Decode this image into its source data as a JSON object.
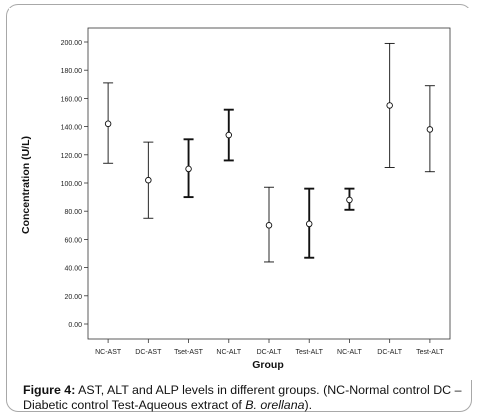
{
  "chart_data": {
    "type": "errorbar",
    "ylabel": "Concentration (U/L)",
    "xlabel": "Group",
    "ylim": [
      0,
      200
    ],
    "yticks": [
      "0.00",
      "20.00",
      "40.00",
      "60.00",
      "80.00",
      "100.00",
      "120.00",
      "140.00",
      "160.00",
      "180.00",
      "200.00"
    ],
    "categories": [
      "NC-AST",
      "DC-AST",
      "Tset-AST",
      "NC-ALT",
      "DC-ALT",
      "Test-ALT",
      "NC-ALT",
      "DC-ALT",
      "Test-ALT"
    ],
    "means": [
      142,
      102,
      110,
      134,
      70,
      71,
      88,
      155,
      138
    ],
    "lower": [
      114,
      75,
      90,
      116,
      44,
      47,
      81,
      111,
      108
    ],
    "upper": [
      171,
      129,
      131,
      152,
      97,
      96,
      96,
      199,
      169
    ],
    "bar_weight": [
      "normal",
      "normal",
      "bold",
      "bold",
      "normal",
      "bold",
      "bold",
      "normal",
      "normal"
    ],
    "grid": false
  },
  "caption": {
    "label": "Figure 4:",
    "text_before_italic": " AST, ALT and ALP levels in different groups. (NC-Normal control DC – Diabetic control Test-Aqueous extract of ",
    "italic": "B. orellana",
    "text_after_italic": ")."
  }
}
